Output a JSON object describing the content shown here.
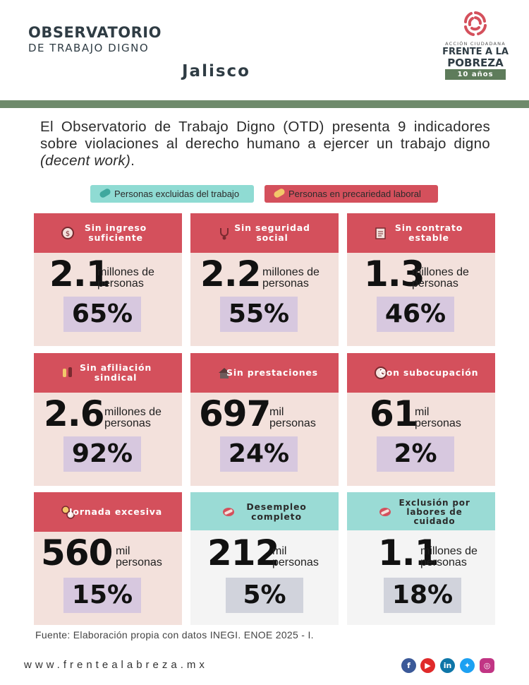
{
  "header": {
    "brand_line1": "OBSERVATORIO",
    "brand_line2": "DE TRABAJO DIGNO",
    "state": "Jalisco",
    "logo": {
      "small_text": "ACCIÓN CIUDADANA",
      "line1": "FRENTE A LA",
      "line2": "POBREZA",
      "ribbon": "10 años"
    }
  },
  "intro": {
    "text": "El Observatorio de Trabajo Digno (OTD) presenta 9 indicadores sobre violaciones al derecho humano a ejercer un trabajo digno ",
    "emphasis": "(decent work)",
    "end": "."
  },
  "legend": {
    "excluded": "Personas excluidas del trabajo",
    "precarious": "Personas en precariedad laboral"
  },
  "colors": {
    "precarious_header": "#d4505c",
    "excluded_header": "#9adbd5",
    "precarious_body": "#f3e1dc",
    "excluded_body": "#f4f4f4",
    "percent_box": "#d7c8df",
    "green_bar": "#6e8a6b"
  },
  "cards": [
    {
      "title": "Sin ingreso suficiente",
      "icon": "money-icon",
      "number": "2.1",
      "unit1": "millones de",
      "unit2": "personas",
      "percent": "65%"
    },
    {
      "title": "Sin seguridad social",
      "icon": "stethoscope-icon",
      "number": "2.2",
      "unit1": "millones de",
      "unit2": "personas",
      "percent": "55%"
    },
    {
      "title": "Sin contrato estable",
      "icon": "contract-icon",
      "number": "1.3",
      "unit1": "millones de",
      "unit2": "personas",
      "percent": "46%"
    },
    {
      "title": "Sin afiliación sindical",
      "icon": "raised-hands-icon",
      "number": "2.6",
      "unit1": "millones de",
      "unit2": "personas",
      "percent": "92%"
    },
    {
      "title": "Sin prestaciones",
      "icon": "house-icon",
      "number": "697",
      "unit1": "mil",
      "unit2": "personas",
      "percent": "24%"
    },
    {
      "title": "Con subocupación",
      "icon": "clock-icon",
      "number": "61",
      "unit1": "mil",
      "unit2": "personas",
      "percent": "2%"
    },
    {
      "title": "Jornada excesiva",
      "icon": "gears-icon",
      "number": "560",
      "unit1": "mil",
      "unit2": "personas",
      "percent": "15%"
    },
    {
      "title": "Desempleo completo",
      "icon": "pill-icon",
      "number": "212",
      "unit1": "mil",
      "unit2": "personas",
      "percent": "5%"
    },
    {
      "title": "Exclusión por labores de cuidado",
      "icon": "pill-icon",
      "number": "1.1",
      "unit1": "millones de",
      "unit2": "personas",
      "percent": "18%"
    }
  ],
  "footer": {
    "source": "Fuente: Elaboración propia con datos INEGI. ENOE 2025 - I.",
    "url": "www.frentealabreza.mx",
    "social": [
      "facebook-icon",
      "youtube-icon",
      "linkedin-icon",
      "twitter-icon",
      "instagram-icon"
    ],
    "linkedin_glyph": "in"
  }
}
